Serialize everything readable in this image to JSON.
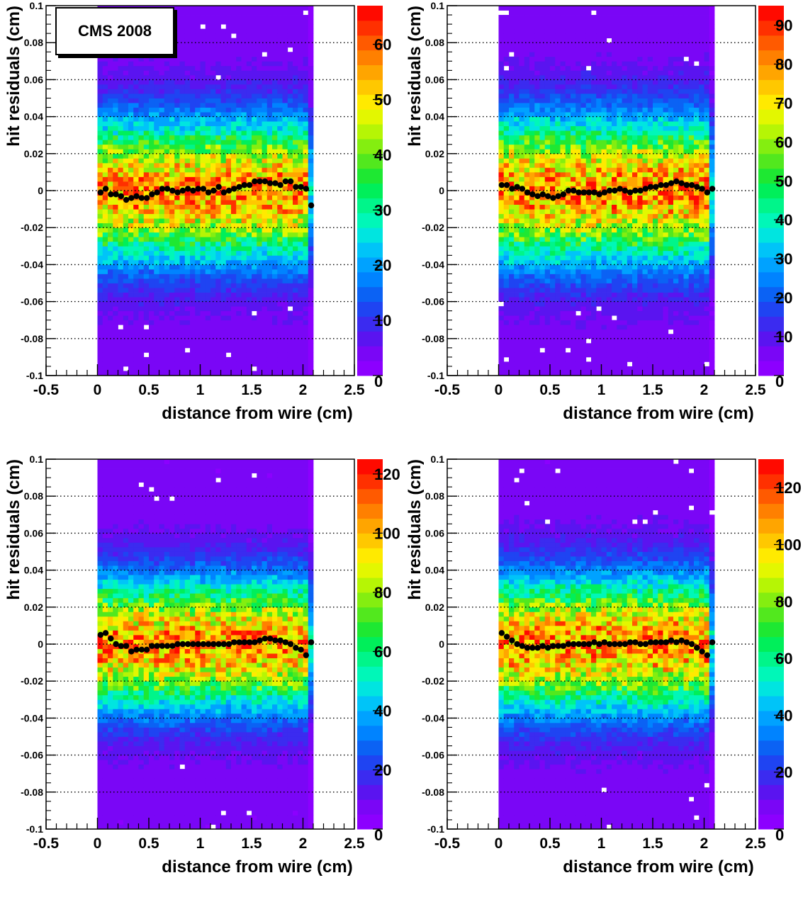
{
  "cms_label": "CMS 2008",
  "chart_data": [
    {
      "type": "heatmap",
      "xlabel": "distance from wire (cm)",
      "ylabel": "hit residuals (cm)",
      "xlim": [
        -0.5,
        2.5
      ],
      "ylim": [
        -0.1,
        0.1
      ],
      "x_ticks": [
        "-0.5",
        "0",
        "0.5",
        "1",
        "1.5",
        "2",
        "2.5"
      ],
      "y_ticks": [
        "-0.1",
        "-0.08",
        "-0.06",
        "-0.04",
        "-0.02",
        "0",
        "0.02",
        "0.04",
        "0.06",
        "0.08",
        "0.1"
      ],
      "data_x_range": [
        0,
        2.1
      ],
      "z_max": 67,
      "z_ticks": [
        "0",
        "10",
        "20",
        "30",
        "40",
        "50",
        "60"
      ],
      "band_sigma": 0.026,
      "grid": "horizontal dotted",
      "profile": {
        "x": [
          0.03,
          0.08,
          0.13,
          0.18,
          0.23,
          0.28,
          0.33,
          0.38,
          0.43,
          0.48,
          0.53,
          0.58,
          0.63,
          0.68,
          0.73,
          0.78,
          0.83,
          0.88,
          0.93,
          0.98,
          1.03,
          1.08,
          1.13,
          1.18,
          1.23,
          1.28,
          1.33,
          1.38,
          1.43,
          1.48,
          1.53,
          1.58,
          1.63,
          1.68,
          1.73,
          1.78,
          1.83,
          1.88,
          1.93,
          1.98,
          2.03,
          2.08
        ],
        "y": [
          -0.001,
          0.001,
          -0.002,
          -0.002,
          -0.003,
          -0.005,
          -0.004,
          -0.003,
          -0.004,
          -0.004,
          -0.002,
          -0.001,
          0.001,
          0.001,
          0.0,
          -0.001,
          0.0,
          0.001,
          0.0,
          0.001,
          0.001,
          -0.001,
          0.0,
          0.002,
          -0.001,
          0.0,
          0.001,
          0.002,
          0.003,
          0.003,
          0.005,
          0.005,
          0.005,
          0.004,
          0.004,
          0.003,
          0.005,
          0.005,
          0.002,
          0.002,
          0.001,
          -0.008
        ]
      }
    },
    {
      "type": "heatmap",
      "xlabel": "distance from wire (cm)",
      "ylabel": "hit residuals (cm)",
      "xlim": [
        -0.5,
        2.5
      ],
      "ylim": [
        -0.1,
        0.1
      ],
      "x_ticks": [
        "-0.5",
        "0",
        "0.5",
        "1",
        "1.5",
        "2",
        "2.5"
      ],
      "y_ticks": [
        "-0.1",
        "-0.08",
        "-0.06",
        "-0.04",
        "-0.02",
        "0",
        "0.02",
        "0.04",
        "0.06",
        "0.08",
        "0.1"
      ],
      "data_x_range": [
        0,
        2.1
      ],
      "z_max": 95,
      "z_ticks": [
        "0",
        "10",
        "20",
        "30",
        "40",
        "50",
        "60",
        "70",
        "80",
        "90"
      ],
      "band_sigma": 0.027,
      "grid": "horizontal dotted",
      "profile": {
        "x": [
          0.03,
          0.08,
          0.13,
          0.18,
          0.23,
          0.28,
          0.33,
          0.38,
          0.43,
          0.48,
          0.53,
          0.58,
          0.63,
          0.68,
          0.73,
          0.78,
          0.83,
          0.88,
          0.93,
          0.98,
          1.03,
          1.08,
          1.13,
          1.18,
          1.23,
          1.28,
          1.33,
          1.38,
          1.43,
          1.48,
          1.53,
          1.58,
          1.63,
          1.68,
          1.73,
          1.78,
          1.83,
          1.88,
          1.93,
          1.98,
          2.03,
          2.08
        ],
        "y": [
          0.003,
          0.003,
          0.001,
          0.002,
          0.001,
          -0.001,
          -0.002,
          -0.003,
          -0.002,
          -0.003,
          -0.004,
          -0.003,
          -0.002,
          0.0,
          0.0,
          -0.001,
          -0.001,
          -0.001,
          -0.001,
          -0.002,
          -0.001,
          0.0,
          0.0,
          0.001,
          0.0,
          -0.001,
          0.0,
          0.0,
          0.001,
          0.002,
          0.002,
          0.003,
          0.003,
          0.004,
          0.005,
          0.004,
          0.003,
          0.003,
          0.002,
          0.001,
          -0.001,
          0.001
        ]
      }
    },
    {
      "type": "heatmap",
      "xlabel": "distance from wire (cm)",
      "ylabel": "hit residuals (cm)",
      "xlim": [
        -0.5,
        2.5
      ],
      "ylim": [
        -0.1,
        0.1
      ],
      "x_ticks": [
        "-0.5",
        "0",
        "0.5",
        "1",
        "1.5",
        "2",
        "2.5"
      ],
      "y_ticks": [
        "-0.1",
        "-0.08",
        "-0.06",
        "-0.04",
        "-0.02",
        "0",
        "0.02",
        "0.04",
        "0.06",
        "0.08",
        "0.1"
      ],
      "data_x_range": [
        0,
        2.1
      ],
      "z_max": 125,
      "z_ticks": [
        "0",
        "20",
        "40",
        "60",
        "80",
        "100",
        "120"
      ],
      "band_sigma": 0.024,
      "grid": "horizontal dotted",
      "profile": {
        "x": [
          0.03,
          0.08,
          0.13,
          0.18,
          0.23,
          0.28,
          0.33,
          0.38,
          0.43,
          0.48,
          0.53,
          0.58,
          0.63,
          0.68,
          0.73,
          0.78,
          0.83,
          0.88,
          0.93,
          0.98,
          1.03,
          1.08,
          1.13,
          1.18,
          1.23,
          1.28,
          1.33,
          1.38,
          1.43,
          1.48,
          1.53,
          1.58,
          1.63,
          1.68,
          1.73,
          1.78,
          1.83,
          1.88,
          1.93,
          1.98,
          2.03,
          2.08
        ],
        "y": [
          0.005,
          0.006,
          0.003,
          0.0,
          -0.001,
          -0.001,
          -0.004,
          -0.003,
          -0.003,
          -0.003,
          -0.001,
          -0.001,
          -0.001,
          -0.001,
          -0.001,
          0.0,
          0.0,
          0.0,
          0.0,
          0.0,
          0.0,
          0.0,
          0.0,
          0.0,
          0.0,
          0.0,
          0.001,
          0.001,
          0.001,
          0.001,
          0.001,
          0.002,
          0.003,
          0.003,
          0.002,
          0.002,
          0.001,
          0.0,
          -0.002,
          -0.003,
          -0.006,
          0.001
        ]
      }
    },
    {
      "type": "heatmap",
      "xlabel": "distance from wire (cm)",
      "ylabel": "hit residuals (cm)",
      "xlim": [
        -0.5,
        2.5
      ],
      "ylim": [
        -0.1,
        0.1
      ],
      "x_ticks": [
        "-0.5",
        "0",
        "0.5",
        "1",
        "1.5",
        "2",
        "2.5"
      ],
      "y_ticks": [
        "-0.1",
        "-0.08",
        "-0.06",
        "-0.04",
        "-0.02",
        "0",
        "0.02",
        "0.04",
        "0.06",
        "0.08",
        "0.1"
      ],
      "data_x_range": [
        0,
        2.1
      ],
      "z_max": 130,
      "z_ticks": [
        "0",
        "20",
        "40",
        "60",
        "80",
        "100",
        "120"
      ],
      "band_sigma": 0.025,
      "grid": "horizontal dotted",
      "profile": {
        "x": [
          0.03,
          0.08,
          0.13,
          0.18,
          0.23,
          0.28,
          0.33,
          0.38,
          0.43,
          0.48,
          0.53,
          0.58,
          0.63,
          0.68,
          0.73,
          0.78,
          0.83,
          0.88,
          0.93,
          0.98,
          1.03,
          1.08,
          1.13,
          1.18,
          1.23,
          1.28,
          1.33,
          1.38,
          1.43,
          1.48,
          1.53,
          1.58,
          1.63,
          1.68,
          1.73,
          1.78,
          1.83,
          1.88,
          1.93,
          1.98,
          2.03,
          2.08
        ],
        "y": [
          0.006,
          0.004,
          0.002,
          0.0,
          -0.001,
          -0.002,
          -0.002,
          -0.002,
          -0.001,
          -0.002,
          -0.001,
          -0.001,
          -0.001,
          0.0,
          0.0,
          0.0,
          0.0,
          0.0,
          0.001,
          0.0,
          0.001,
          0.0,
          0.0,
          0.0,
          0.0,
          0.001,
          0.001,
          0.0,
          0.0,
          0.001,
          0.001,
          0.001,
          0.001,
          0.002,
          0.001,
          0.002,
          0.001,
          0.0,
          -0.002,
          -0.004,
          -0.006,
          0.001
        ]
      }
    }
  ]
}
